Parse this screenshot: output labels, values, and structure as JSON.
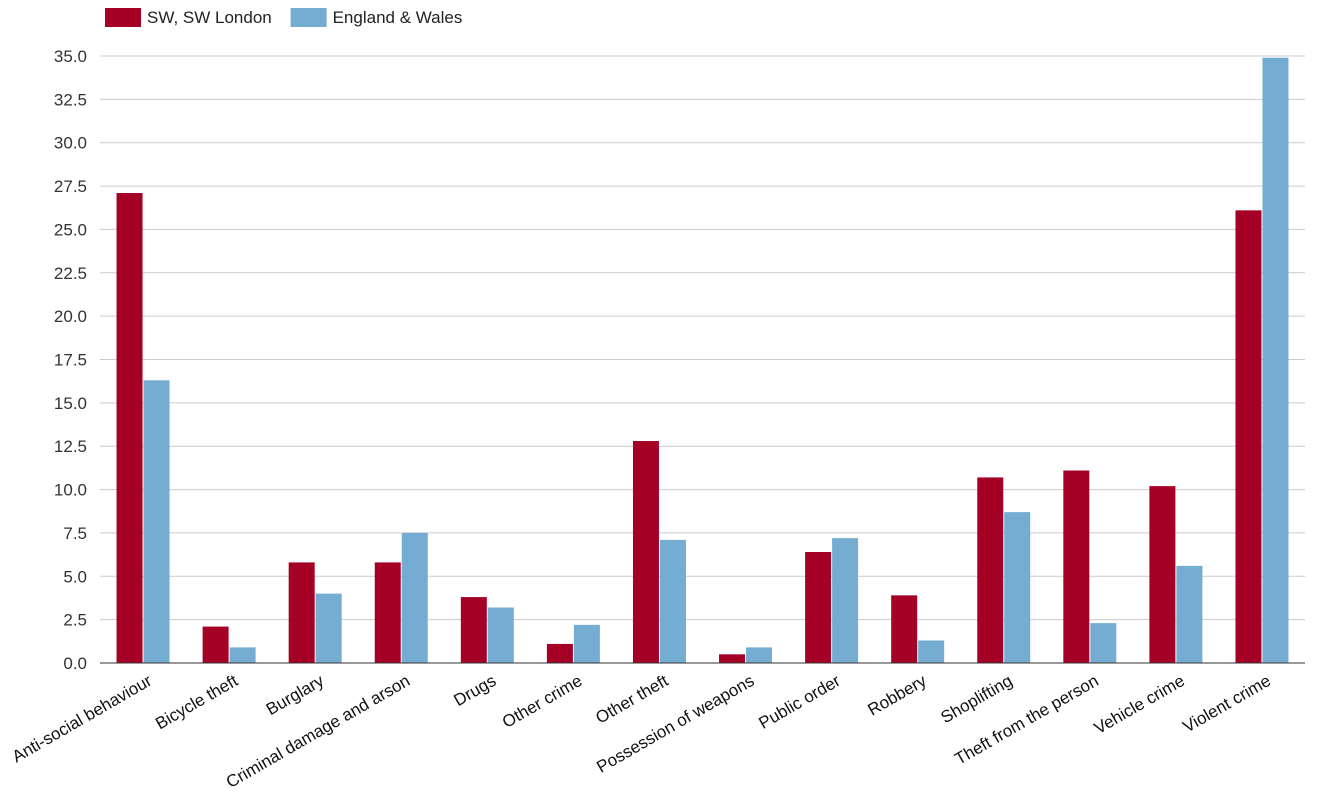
{
  "chart_data": {
    "type": "bar",
    "title": "",
    "xlabel": "",
    "ylabel": "",
    "ylim": [
      0,
      35
    ],
    "y_ticks": [
      "0.0",
      "2.5",
      "5.0",
      "7.5",
      "10.0",
      "12.5",
      "15.0",
      "17.5",
      "20.0",
      "22.5",
      "25.0",
      "27.5",
      "30.0",
      "32.5",
      "35.0"
    ],
    "grid": true,
    "legend_position": "top-left",
    "categories": [
      "Anti-social behaviour",
      "Bicycle theft",
      "Burglary",
      "Criminal damage and arson",
      "Drugs",
      "Other crime",
      "Other theft",
      "Possession of weapons",
      "Public order",
      "Robbery",
      "Shoplifting",
      "Theft from the person",
      "Vehicle crime",
      "Violent crime"
    ],
    "series": [
      {
        "name": "SW, SW London",
        "color": "#a50026",
        "values": [
          27.1,
          2.1,
          5.8,
          5.8,
          3.8,
          1.1,
          12.8,
          0.5,
          6.4,
          3.9,
          10.7,
          11.1,
          10.2,
          26.1
        ]
      },
      {
        "name": "England & Wales",
        "color": "#74add1",
        "values": [
          16.3,
          0.9,
          4.0,
          7.5,
          3.2,
          2.2,
          7.1,
          0.9,
          7.2,
          1.3,
          8.7,
          2.3,
          5.6,
          34.9
        ]
      }
    ]
  }
}
